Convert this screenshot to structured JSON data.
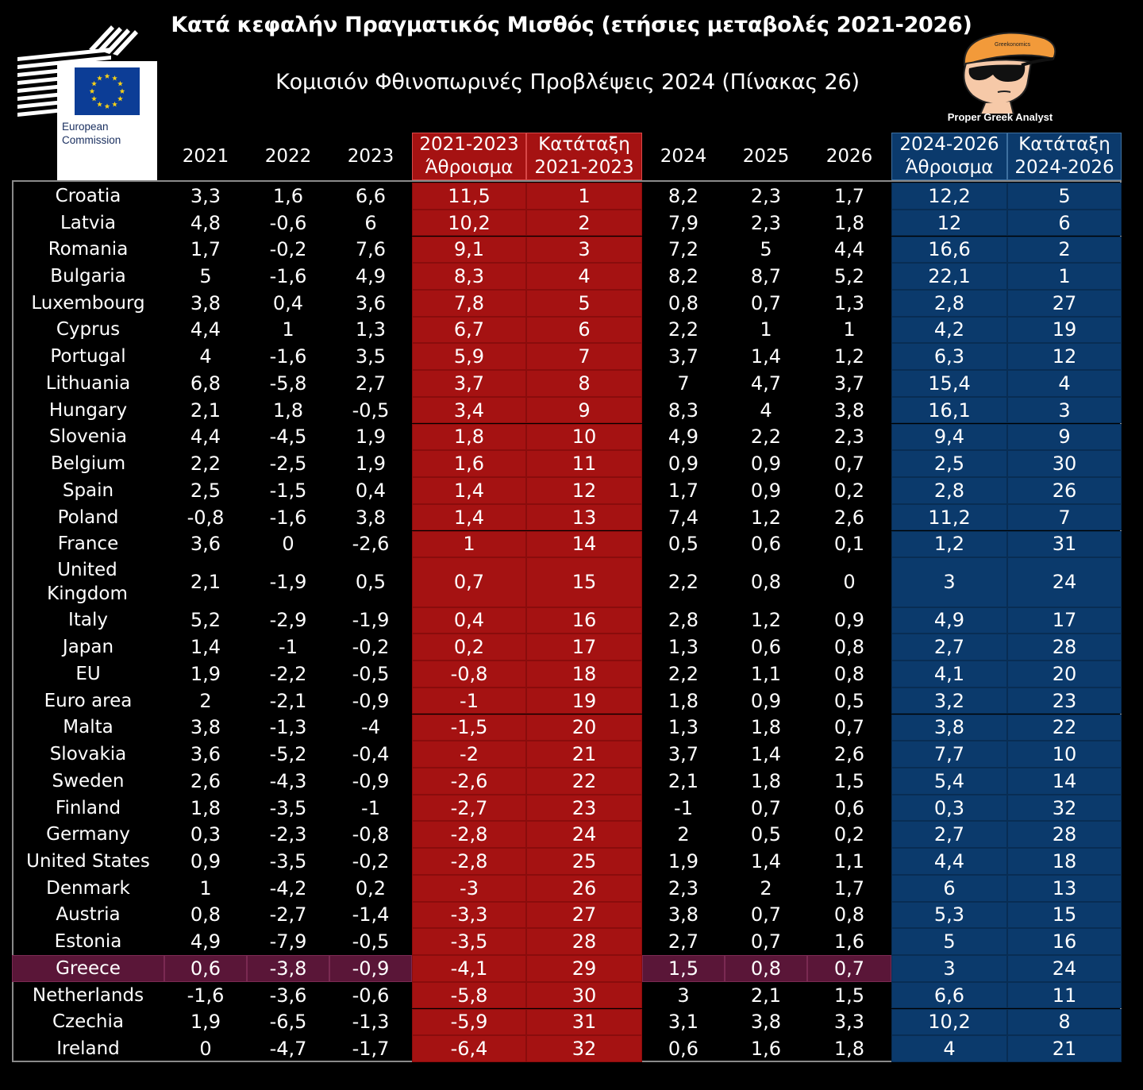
{
  "title": "Κατά κεφαλήν Πραγματικός Μισθός (ετήσιες μεταβολές 2021-2026)",
  "subtitle": "Κομισιόν Φθινοπωρινές Προβλέψεις 2024 (Πίνακας 26)",
  "logo": {
    "line1": "European",
    "line2": "Commission"
  },
  "mascot": {
    "label": "Proper Greek Analyst",
    "hat_text": "Greekonomics"
  },
  "colors": {
    "red": "#a51212",
    "blue": "#0b3a6c",
    "highlight": "#5a1638",
    "background": "#000000"
  },
  "chart_data": {
    "type": "table",
    "title": "Κατά κεφαλήν Πραγματικός Μισθός (ετήσιες μεταβολές 2021-2026)",
    "subtitle": "Κομισιόν Φθινοπωρινές Προβλέψεις 2024 (Πίνακας 26)",
    "columns": [
      "",
      "2021",
      "2022",
      "2023",
      "2021-2023 Άθροισμα",
      "Κατάταξη 2021-2023",
      "2024",
      "2025",
      "2026",
      "2024-2026 Άθροισμα",
      "Κατάταξη 2024-2026"
    ],
    "header_cells": [
      {
        "line1": "2021",
        "line2": ""
      },
      {
        "line1": "2022",
        "line2": ""
      },
      {
        "line1": "2023",
        "line2": ""
      },
      {
        "line1": "2021-2023",
        "line2": "Άθροισμα"
      },
      {
        "line1": "Κατάταξη",
        "line2": "2021-2023"
      },
      {
        "line1": "2024",
        "line2": ""
      },
      {
        "line1": "2025",
        "line2": ""
      },
      {
        "line1": "2026",
        "line2": ""
      },
      {
        "line1": "2024-2026",
        "line2": "Άθροισμα"
      },
      {
        "line1": "Κατάταξη",
        "line2": "2024-2026"
      }
    ],
    "highlight_row": "Greece",
    "rows": [
      [
        "Croatia",
        "3,3",
        "1,6",
        "6,6",
        "11,5",
        "1",
        "8,2",
        "2,3",
        "1,7",
        "12,2",
        "5"
      ],
      [
        "Latvia",
        "4,8",
        "-0,6",
        "6",
        "10,2",
        "2",
        "7,9",
        "2,3",
        "1,8",
        "12",
        "6"
      ],
      [
        "Romania",
        "1,7",
        "-0,2",
        "7,6",
        "9,1",
        "3",
        "7,2",
        "5",
        "4,4",
        "16,6",
        "2"
      ],
      [
        "Bulgaria",
        "5",
        "-1,6",
        "4,9",
        "8,3",
        "4",
        "8,2",
        "8,7",
        "5,2",
        "22,1",
        "1"
      ],
      [
        "Luxembourg",
        "3,8",
        "0,4",
        "3,6",
        "7,8",
        "5",
        "0,8",
        "0,7",
        "1,3",
        "2,8",
        "27"
      ],
      [
        "Cyprus",
        "4,4",
        "1",
        "1,3",
        "6,7",
        "6",
        "2,2",
        "1",
        "1",
        "4,2",
        "19"
      ],
      [
        "Portugal",
        "4",
        "-1,6",
        "3,5",
        "5,9",
        "7",
        "3,7",
        "1,4",
        "1,2",
        "6,3",
        "12"
      ],
      [
        "Lithuania",
        "6,8",
        "-5,8",
        "2,7",
        "3,7",
        "8",
        "7",
        "4,7",
        "3,7",
        "15,4",
        "4"
      ],
      [
        "Hungary",
        "2,1",
        "1,8",
        "-0,5",
        "3,4",
        "9",
        "8,3",
        "4",
        "3,8",
        "16,1",
        "3"
      ],
      [
        "Slovenia",
        "4,4",
        "-4,5",
        "1,9",
        "1,8",
        "10",
        "4,9",
        "2,2",
        "2,3",
        "9,4",
        "9"
      ],
      [
        "Belgium",
        "2,2",
        "-2,5",
        "1,9",
        "1,6",
        "11",
        "0,9",
        "0,9",
        "0,7",
        "2,5",
        "30"
      ],
      [
        "Spain",
        "2,5",
        "-1,5",
        "0,4",
        "1,4",
        "12",
        "1,7",
        "0,9",
        "0,2",
        "2,8",
        "26"
      ],
      [
        "Poland",
        "-0,8",
        "-1,6",
        "3,8",
        "1,4",
        "13",
        "7,4",
        "1,2",
        "2,6",
        "11,2",
        "7"
      ],
      [
        "France",
        "3,6",
        "0",
        "-2,6",
        "1",
        "14",
        "0,5",
        "0,6",
        "0,1",
        "1,2",
        "31"
      ],
      [
        "United Kingdom",
        "2,1",
        "-1,9",
        "0,5",
        "0,7",
        "15",
        "2,2",
        "0,8",
        "0",
        "3",
        "24"
      ],
      [
        "Italy",
        "5,2",
        "-2,9",
        "-1,9",
        "0,4",
        "16",
        "2,8",
        "1,2",
        "0,9",
        "4,9",
        "17"
      ],
      [
        "Japan",
        "1,4",
        "-1",
        "-0,2",
        "0,2",
        "17",
        "1,3",
        "0,6",
        "0,8",
        "2,7",
        "28"
      ],
      [
        "EU",
        "1,9",
        "-2,2",
        "-0,5",
        "-0,8",
        "18",
        "2,2",
        "1,1",
        "0,8",
        "4,1",
        "20"
      ],
      [
        "Euro area",
        "2",
        "-2,1",
        "-0,9",
        "-1",
        "19",
        "1,8",
        "0,9",
        "0,5",
        "3,2",
        "23"
      ],
      [
        "Malta",
        "3,8",
        "-1,3",
        "-4",
        "-1,5",
        "20",
        "1,3",
        "1,8",
        "0,7",
        "3,8",
        "22"
      ],
      [
        "Slovakia",
        "3,6",
        "-5,2",
        "-0,4",
        "-2",
        "21",
        "3,7",
        "1,4",
        "2,6",
        "7,7",
        "10"
      ],
      [
        "Sweden",
        "2,6",
        "-4,3",
        "-0,9",
        "-2,6",
        "22",
        "2,1",
        "1,8",
        "1,5",
        "5,4",
        "14"
      ],
      [
        "Finland",
        "1,8",
        "-3,5",
        "-1",
        "-2,7",
        "23",
        "-1",
        "0,7",
        "0,6",
        "0,3",
        "32"
      ],
      [
        "Germany",
        "0,3",
        "-2,3",
        "-0,8",
        "-2,8",
        "24",
        "2",
        "0,5",
        "0,2",
        "2,7",
        "28"
      ],
      [
        "United States",
        "0,9",
        "-3,5",
        "-0,2",
        "-2,8",
        "25",
        "1,9",
        "1,4",
        "1,1",
        "4,4",
        "18"
      ],
      [
        "Denmark",
        "1",
        "-4,2",
        "0,2",
        "-3",
        "26",
        "2,3",
        "2",
        "1,7",
        "6",
        "13"
      ],
      [
        "Austria",
        "0,8",
        "-2,7",
        "-1,4",
        "-3,3",
        "27",
        "3,8",
        "0,7",
        "0,8",
        "5,3",
        "15"
      ],
      [
        "Estonia",
        "4,9",
        "-7,9",
        "-0,5",
        "-3,5",
        "28",
        "2,7",
        "0,7",
        "1,6",
        "5",
        "16"
      ],
      [
        "Greece",
        "0,6",
        "-3,8",
        "-0,9",
        "-4,1",
        "29",
        "1,5",
        "0,8",
        "0,7",
        "3",
        "24"
      ],
      [
        "Netherlands",
        "-1,6",
        "-3,6",
        "-0,6",
        "-5,8",
        "30",
        "3",
        "2,1",
        "1,5",
        "6,6",
        "11"
      ],
      [
        "Czechia",
        "1,9",
        "-6,5",
        "-1,3",
        "-5,9",
        "31",
        "3,1",
        "3,8",
        "3,3",
        "10,2",
        "8"
      ],
      [
        "Ireland",
        "0",
        "-4,7",
        "-1,7",
        "-6,4",
        "32",
        "0,6",
        "1,6",
        "1,8",
        "4",
        "21"
      ]
    ]
  }
}
